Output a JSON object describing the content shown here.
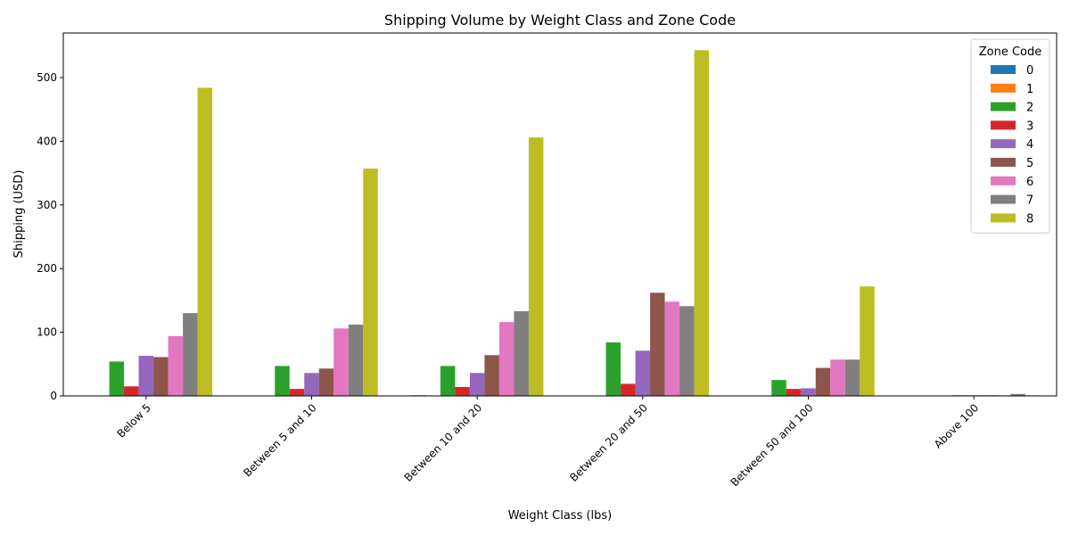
{
  "chart_data": {
    "type": "bar",
    "title": "Shipping Volume by Weight Class and Zone Code",
    "xlabel": "Weight Class (lbs)",
    "ylabel": "Shipping (USD)",
    "categories": [
      "Below 5",
      "Between 5 and 10",
      "Between 10 and 20",
      "Between 20 and 50",
      "Between 50 and 100",
      "Above 100"
    ],
    "ylim": [
      0,
      570
    ],
    "yticks": [
      0,
      100,
      200,
      300,
      400,
      500
    ],
    "grid": false,
    "legend": {
      "title": "Zone Code",
      "placement": "top-right"
    },
    "series": [
      {
        "name": "0",
        "color": "#1f77b4",
        "values": [
          0,
          0,
          1,
          0,
          0,
          0
        ]
      },
      {
        "name": "1",
        "color": "#ff7f0e",
        "values": [
          0,
          0,
          0,
          0,
          0,
          0
        ]
      },
      {
        "name": "2",
        "color": "#2ca02c",
        "values": [
          54,
          47,
          47,
          84,
          25,
          0
        ]
      },
      {
        "name": "3",
        "color": "#d62728",
        "values": [
          15,
          11,
          14,
          19,
          11,
          1
        ]
      },
      {
        "name": "4",
        "color": "#9467bd",
        "values": [
          63,
          36,
          36,
          71,
          12,
          1
        ]
      },
      {
        "name": "5",
        "color": "#8c564b",
        "values": [
          61,
          43,
          64,
          162,
          44,
          1
        ]
      },
      {
        "name": "6",
        "color": "#e377c2",
        "values": [
          94,
          106,
          116,
          148,
          57,
          1
        ]
      },
      {
        "name": "7",
        "color": "#7f7f7f",
        "values": [
          130,
          112,
          133,
          141,
          57,
          3
        ]
      },
      {
        "name": "8",
        "color": "#bcbd22",
        "values": [
          484,
          357,
          406,
          543,
          172,
          1
        ]
      }
    ]
  }
}
